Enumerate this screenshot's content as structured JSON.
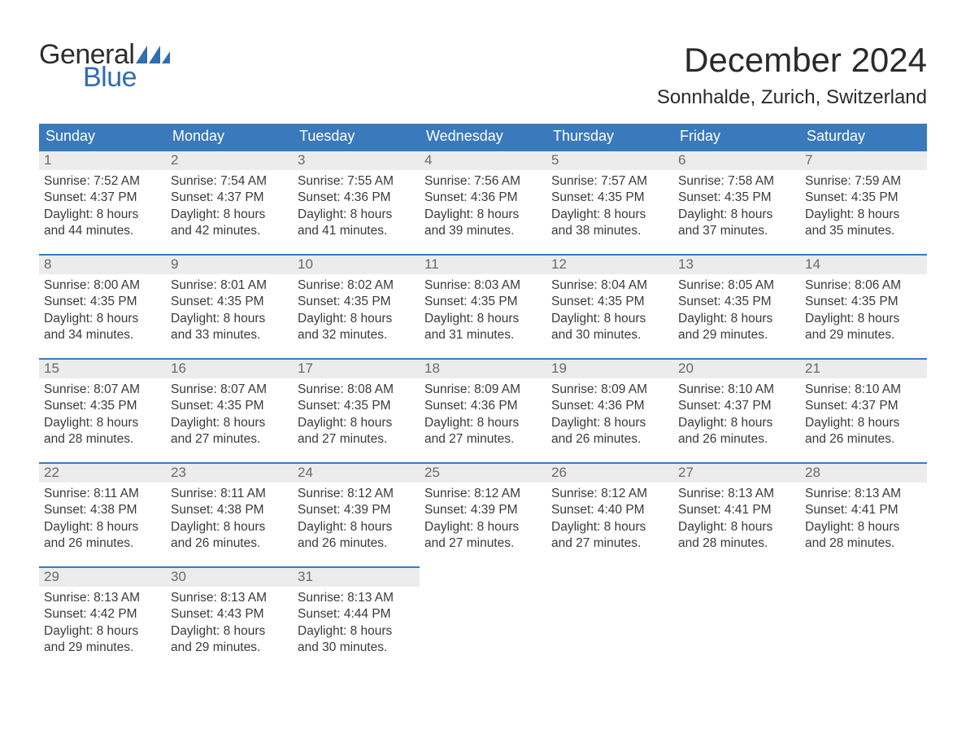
{
  "logo": {
    "word1": "General",
    "word2": "Blue",
    "flag_color": "#2f6eb0"
  },
  "title": "December 2024",
  "location": "Sonnhalde, Zurich, Switzerland",
  "colors": {
    "header_bg": "#3a79bb",
    "header_text": "#ffffff",
    "daynum_bg": "#ececec",
    "daynum_border": "#3a79bb",
    "daynum_text": "#6a6a6a",
    "body_text": "#3a3a3a",
    "page_bg": "#ffffff"
  },
  "typography": {
    "title_fontsize": 42,
    "location_fontsize": 24,
    "header_fontsize": 18,
    "daynum_fontsize": 17,
    "body_fontsize": 15.5,
    "logo_fontsize": 34
  },
  "day_headers": [
    "Sunday",
    "Monday",
    "Tuesday",
    "Wednesday",
    "Thursday",
    "Friday",
    "Saturday"
  ],
  "weeks": [
    [
      {
        "n": "1",
        "sunrise": "Sunrise: 7:52 AM",
        "sunset": "Sunset: 4:37 PM",
        "daylight": "Daylight: 8 hours and 44 minutes."
      },
      {
        "n": "2",
        "sunrise": "Sunrise: 7:54 AM",
        "sunset": "Sunset: 4:37 PM",
        "daylight": "Daylight: 8 hours and 42 minutes."
      },
      {
        "n": "3",
        "sunrise": "Sunrise: 7:55 AM",
        "sunset": "Sunset: 4:36 PM",
        "daylight": "Daylight: 8 hours and 41 minutes."
      },
      {
        "n": "4",
        "sunrise": "Sunrise: 7:56 AM",
        "sunset": "Sunset: 4:36 PM",
        "daylight": "Daylight: 8 hours and 39 minutes."
      },
      {
        "n": "5",
        "sunrise": "Sunrise: 7:57 AM",
        "sunset": "Sunset: 4:35 PM",
        "daylight": "Daylight: 8 hours and 38 minutes."
      },
      {
        "n": "6",
        "sunrise": "Sunrise: 7:58 AM",
        "sunset": "Sunset: 4:35 PM",
        "daylight": "Daylight: 8 hours and 37 minutes."
      },
      {
        "n": "7",
        "sunrise": "Sunrise: 7:59 AM",
        "sunset": "Sunset: 4:35 PM",
        "daylight": "Daylight: 8 hours and 35 minutes."
      }
    ],
    [
      {
        "n": "8",
        "sunrise": "Sunrise: 8:00 AM",
        "sunset": "Sunset: 4:35 PM",
        "daylight": "Daylight: 8 hours and 34 minutes."
      },
      {
        "n": "9",
        "sunrise": "Sunrise: 8:01 AM",
        "sunset": "Sunset: 4:35 PM",
        "daylight": "Daylight: 8 hours and 33 minutes."
      },
      {
        "n": "10",
        "sunrise": "Sunrise: 8:02 AM",
        "sunset": "Sunset: 4:35 PM",
        "daylight": "Daylight: 8 hours and 32 minutes."
      },
      {
        "n": "11",
        "sunrise": "Sunrise: 8:03 AM",
        "sunset": "Sunset: 4:35 PM",
        "daylight": "Daylight: 8 hours and 31 minutes."
      },
      {
        "n": "12",
        "sunrise": "Sunrise: 8:04 AM",
        "sunset": "Sunset: 4:35 PM",
        "daylight": "Daylight: 8 hours and 30 minutes."
      },
      {
        "n": "13",
        "sunrise": "Sunrise: 8:05 AM",
        "sunset": "Sunset: 4:35 PM",
        "daylight": "Daylight: 8 hours and 29 minutes."
      },
      {
        "n": "14",
        "sunrise": "Sunrise: 8:06 AM",
        "sunset": "Sunset: 4:35 PM",
        "daylight": "Daylight: 8 hours and 29 minutes."
      }
    ],
    [
      {
        "n": "15",
        "sunrise": "Sunrise: 8:07 AM",
        "sunset": "Sunset: 4:35 PM",
        "daylight": "Daylight: 8 hours and 28 minutes."
      },
      {
        "n": "16",
        "sunrise": "Sunrise: 8:07 AM",
        "sunset": "Sunset: 4:35 PM",
        "daylight": "Daylight: 8 hours and 27 minutes."
      },
      {
        "n": "17",
        "sunrise": "Sunrise: 8:08 AM",
        "sunset": "Sunset: 4:35 PM",
        "daylight": "Daylight: 8 hours and 27 minutes."
      },
      {
        "n": "18",
        "sunrise": "Sunrise: 8:09 AM",
        "sunset": "Sunset: 4:36 PM",
        "daylight": "Daylight: 8 hours and 27 minutes."
      },
      {
        "n": "19",
        "sunrise": "Sunrise: 8:09 AM",
        "sunset": "Sunset: 4:36 PM",
        "daylight": "Daylight: 8 hours and 26 minutes."
      },
      {
        "n": "20",
        "sunrise": "Sunrise: 8:10 AM",
        "sunset": "Sunset: 4:37 PM",
        "daylight": "Daylight: 8 hours and 26 minutes."
      },
      {
        "n": "21",
        "sunrise": "Sunrise: 8:10 AM",
        "sunset": "Sunset: 4:37 PM",
        "daylight": "Daylight: 8 hours and 26 minutes."
      }
    ],
    [
      {
        "n": "22",
        "sunrise": "Sunrise: 8:11 AM",
        "sunset": "Sunset: 4:38 PM",
        "daylight": "Daylight: 8 hours and 26 minutes."
      },
      {
        "n": "23",
        "sunrise": "Sunrise: 8:11 AM",
        "sunset": "Sunset: 4:38 PM",
        "daylight": "Daylight: 8 hours and 26 minutes."
      },
      {
        "n": "24",
        "sunrise": "Sunrise: 8:12 AM",
        "sunset": "Sunset: 4:39 PM",
        "daylight": "Daylight: 8 hours and 26 minutes."
      },
      {
        "n": "25",
        "sunrise": "Sunrise: 8:12 AM",
        "sunset": "Sunset: 4:39 PM",
        "daylight": "Daylight: 8 hours and 27 minutes."
      },
      {
        "n": "26",
        "sunrise": "Sunrise: 8:12 AM",
        "sunset": "Sunset: 4:40 PM",
        "daylight": "Daylight: 8 hours and 27 minutes."
      },
      {
        "n": "27",
        "sunrise": "Sunrise: 8:13 AM",
        "sunset": "Sunset: 4:41 PM",
        "daylight": "Daylight: 8 hours and 28 minutes."
      },
      {
        "n": "28",
        "sunrise": "Sunrise: 8:13 AM",
        "sunset": "Sunset: 4:41 PM",
        "daylight": "Daylight: 8 hours and 28 minutes."
      }
    ],
    [
      {
        "n": "29",
        "sunrise": "Sunrise: 8:13 AM",
        "sunset": "Sunset: 4:42 PM",
        "daylight": "Daylight: 8 hours and 29 minutes."
      },
      {
        "n": "30",
        "sunrise": "Sunrise: 8:13 AM",
        "sunset": "Sunset: 4:43 PM",
        "daylight": "Daylight: 8 hours and 29 minutes."
      },
      {
        "n": "31",
        "sunrise": "Sunrise: 8:13 AM",
        "sunset": "Sunset: 4:44 PM",
        "daylight": "Daylight: 8 hours and 30 minutes."
      },
      {
        "blank": true
      },
      {
        "blank": true
      },
      {
        "blank": true
      },
      {
        "blank": true
      }
    ]
  ]
}
